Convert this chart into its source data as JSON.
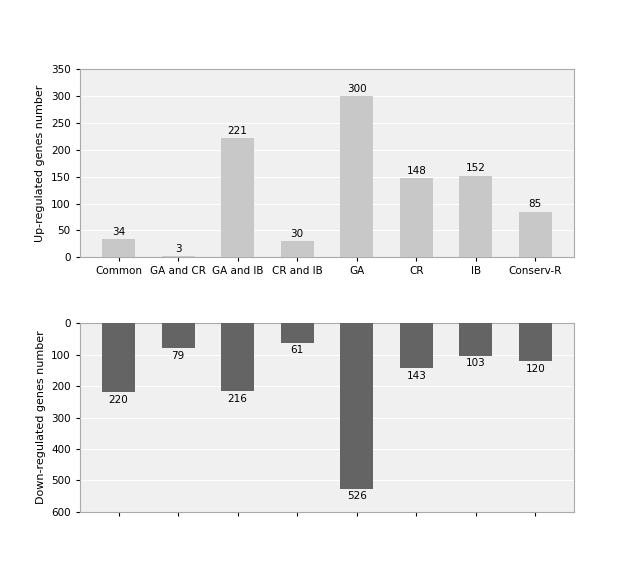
{
  "categories": [
    "Common",
    "GA and CR",
    "GA and IB",
    "CR and IB",
    "GA",
    "CR",
    "IB",
    "Conserv-R"
  ],
  "up_values": [
    34,
    3,
    221,
    30,
    300,
    148,
    152,
    85
  ],
  "down_values": [
    -220,
    -79,
    -216,
    -61,
    -526,
    -143,
    -103,
    -120
  ],
  "up_color": "#c8c8c8",
  "down_color": "#646464",
  "up_ylabel": "Up-regulated genes number",
  "down_ylabel": "Down-regulated genes number",
  "up_ylim": [
    0,
    350
  ],
  "down_ylim": [
    -600,
    0
  ],
  "up_yticks": [
    0,
    50,
    100,
    150,
    200,
    250,
    300,
    350
  ],
  "down_yticks": [
    0,
    -100,
    -200,
    -300,
    -400,
    -500,
    -600
  ],
  "background_color": "#ffffff",
  "plot_bg_color": "#f0f0f0",
  "bar_width": 0.55,
  "label_fontsize": 7.5,
  "tick_fontsize": 7.5,
  "ylabel_fontsize": 8
}
